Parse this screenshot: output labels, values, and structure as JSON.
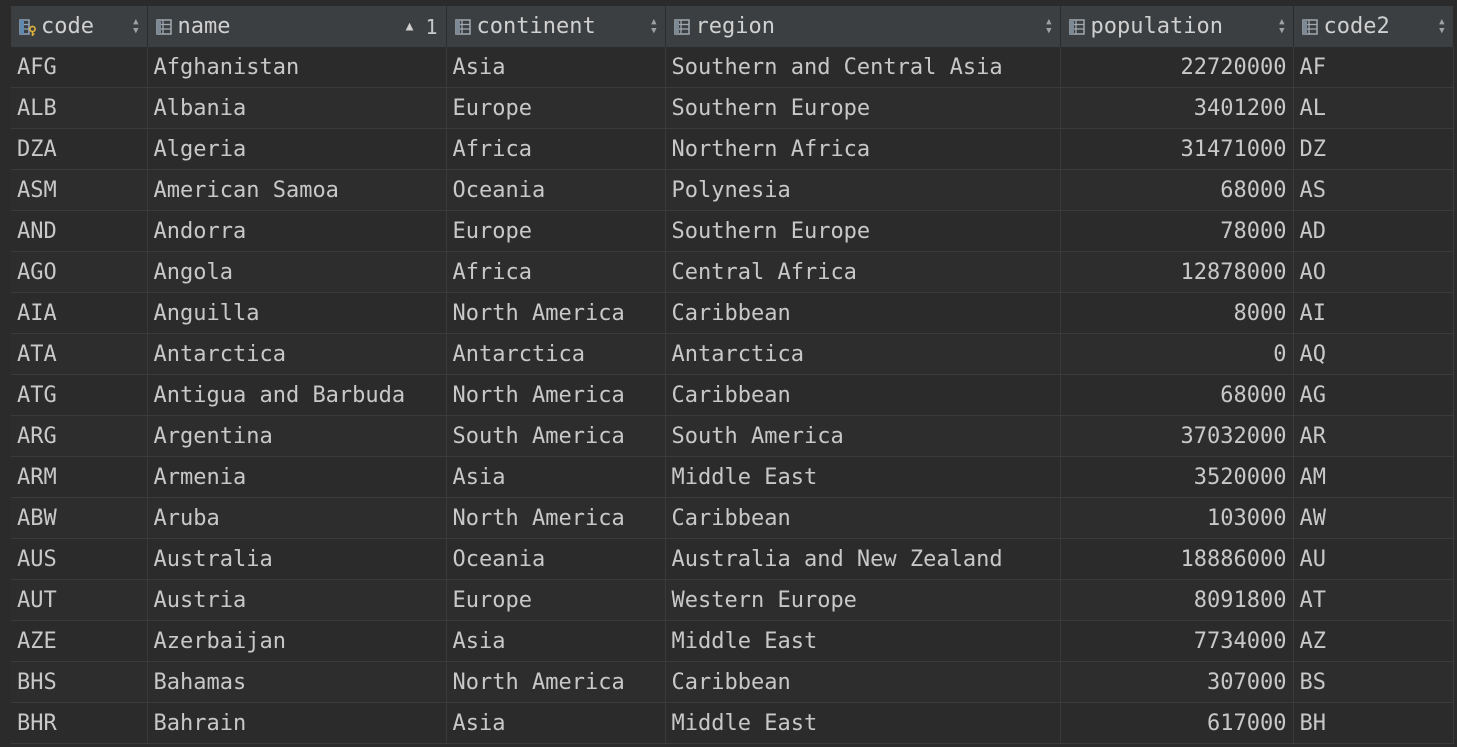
{
  "columns": [
    {
      "key": "code",
      "label": "code",
      "icon": "primary-key-column-icon",
      "sort": "both"
    },
    {
      "key": "name",
      "label": "name",
      "icon": "column-icon",
      "sort": "asc",
      "sort_order": "1"
    },
    {
      "key": "continent",
      "label": "continent",
      "icon": "column-icon",
      "sort": "both"
    },
    {
      "key": "region",
      "label": "region",
      "icon": "column-icon",
      "sort": "both"
    },
    {
      "key": "population",
      "label": "population",
      "icon": "column-icon",
      "sort": "both"
    },
    {
      "key": "code2",
      "label": "code2",
      "icon": "column-icon",
      "sort": "both"
    }
  ],
  "rows": [
    {
      "code": "AFG",
      "name": "Afghanistan",
      "continent": "Asia",
      "region": "Southern and Central Asia",
      "population": "22720000",
      "code2": "AF"
    },
    {
      "code": "ALB",
      "name": "Albania",
      "continent": "Europe",
      "region": "Southern Europe",
      "population": "3401200",
      "code2": "AL"
    },
    {
      "code": "DZA",
      "name": "Algeria",
      "continent": "Africa",
      "region": "Northern Africa",
      "population": "31471000",
      "code2": "DZ"
    },
    {
      "code": "ASM",
      "name": "American Samoa",
      "continent": "Oceania",
      "region": "Polynesia",
      "population": "68000",
      "code2": "AS"
    },
    {
      "code": "AND",
      "name": "Andorra",
      "continent": "Europe",
      "region": "Southern Europe",
      "population": "78000",
      "code2": "AD"
    },
    {
      "code": "AGO",
      "name": "Angola",
      "continent": "Africa",
      "region": "Central Africa",
      "population": "12878000",
      "code2": "AO"
    },
    {
      "code": "AIA",
      "name": "Anguilla",
      "continent": "North America",
      "region": "Caribbean",
      "population": "8000",
      "code2": "AI"
    },
    {
      "code": "ATA",
      "name": "Antarctica",
      "continent": "Antarctica",
      "region": "Antarctica",
      "population": "0",
      "code2": "AQ"
    },
    {
      "code": "ATG",
      "name": "Antigua and Barbuda",
      "continent": "North America",
      "region": "Caribbean",
      "population": "68000",
      "code2": "AG"
    },
    {
      "code": "ARG",
      "name": "Argentina",
      "continent": "South America",
      "region": "South America",
      "population": "37032000",
      "code2": "AR"
    },
    {
      "code": "ARM",
      "name": "Armenia",
      "continent": "Asia",
      "region": "Middle East",
      "population": "3520000",
      "code2": "AM"
    },
    {
      "code": "ABW",
      "name": "Aruba",
      "continent": "North America",
      "region": "Caribbean",
      "population": "103000",
      "code2": "AW"
    },
    {
      "code": "AUS",
      "name": "Australia",
      "continent": "Oceania",
      "region": "Australia and New Zealand",
      "population": "18886000",
      "code2": "AU"
    },
    {
      "code": "AUT",
      "name": "Austria",
      "continent": "Europe",
      "region": "Western Europe",
      "population": "8091800",
      "code2": "AT"
    },
    {
      "code": "AZE",
      "name": "Azerbaijan",
      "continent": "Asia",
      "region": "Middle East",
      "population": "7734000",
      "code2": "AZ"
    },
    {
      "code": "BHS",
      "name": "Bahamas",
      "continent": "North America",
      "region": "Caribbean",
      "population": "307000",
      "code2": "BS"
    },
    {
      "code": "BHR",
      "name": "Bahrain",
      "continent": "Asia",
      "region": "Middle East",
      "population": "617000",
      "code2": "BH"
    }
  ]
}
